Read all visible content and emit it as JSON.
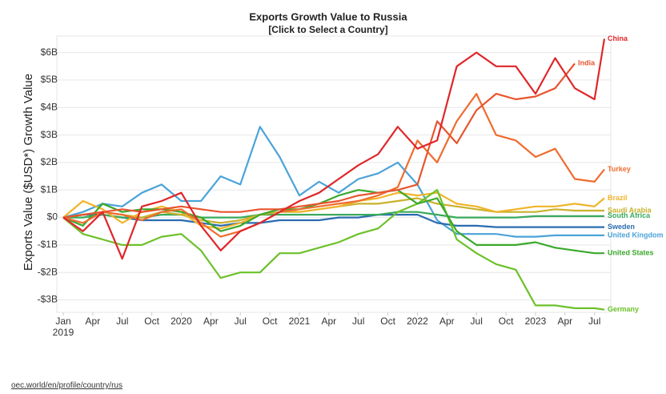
{
  "chart_data": {
    "type": "line",
    "title": "Exports Growth Value to Russia",
    "subtitle": "[Click to Select a Country]",
    "y_label": "Exports Value ($USD*) Growth Value",
    "source": "oec.world/en/profile/country/rus",
    "grid": true,
    "x": [
      "2019-01",
      "2019-03",
      "2019-05",
      "2019-07",
      "2019-09",
      "2019-11",
      "2020-01",
      "2020-03",
      "2020-05",
      "2020-07",
      "2020-09",
      "2020-11",
      "2021-01",
      "2021-03",
      "2021-05",
      "2021-07",
      "2021-09",
      "2021-11",
      "2022-01",
      "2022-03",
      "2022-05",
      "2022-07",
      "2022-09",
      "2022-11",
      "2023-01",
      "2023-03",
      "2023-05",
      "2023-07",
      "2023-08"
    ],
    "xlim": [
      "2019-01",
      "2023-08"
    ],
    "xticks": [
      {
        "value": "2019-01",
        "label": "Jan\n2019"
      },
      {
        "value": "2019-04",
        "label": "Apr"
      },
      {
        "value": "2019-07",
        "label": "Jul"
      },
      {
        "value": "2019-10",
        "label": "Oct"
      },
      {
        "value": "2020-01",
        "label": "2020"
      },
      {
        "value": "2020-04",
        "label": "Apr"
      },
      {
        "value": "2020-07",
        "label": "Jul"
      },
      {
        "value": "2020-10",
        "label": "Oct"
      },
      {
        "value": "2021-01",
        "label": "2021"
      },
      {
        "value": "2021-04",
        "label": "Apr"
      },
      {
        "value": "2021-07",
        "label": "Jul"
      },
      {
        "value": "2021-10",
        "label": "Oct"
      },
      {
        "value": "2022-01",
        "label": "2022"
      },
      {
        "value": "2022-04",
        "label": "Apr"
      },
      {
        "value": "2022-07",
        "label": "Jul"
      },
      {
        "value": "2022-10",
        "label": "Oct"
      },
      {
        "value": "2023-01",
        "label": "2023"
      },
      {
        "value": "2023-04",
        "label": "Apr"
      },
      {
        "value": "2023-07",
        "label": "Jul"
      }
    ],
    "ylim": [
      -3.45,
      6.6
    ],
    "yticks": [
      {
        "value": -3,
        "label": "-$3B"
      },
      {
        "value": -2,
        "label": "-$2B"
      },
      {
        "value": -1,
        "label": "-$1B"
      },
      {
        "value": 0,
        "label": "$0"
      },
      {
        "value": 1,
        "label": "$1B"
      },
      {
        "value": 2,
        "label": "$2B"
      },
      {
        "value": 3,
        "label": "$3B"
      },
      {
        "value": 4,
        "label": "$4B"
      },
      {
        "value": 5,
        "label": "$5B"
      },
      {
        "value": 6,
        "label": "$6B"
      }
    ],
    "series": [
      {
        "name": "United Kingdom",
        "color": "#4aa3d8",
        "values": [
          0,
          0.2,
          0.5,
          0.4,
          0.9,
          1.2,
          0.6,
          0.6,
          1.5,
          1.2,
          3.3,
          2.2,
          0.8,
          1.3,
          0.9,
          1.4,
          1.6,
          2.0,
          1.2,
          -0.1,
          -0.6,
          -0.6,
          -0.6,
          -0.7,
          -0.7,
          -0.65,
          -0.65,
          -0.65,
          -0.65
        ]
      },
      {
        "name": "Sweden",
        "color": "#2b6cb0",
        "values": [
          0,
          0.1,
          0.1,
          0.0,
          -0.1,
          -0.1,
          -0.1,
          -0.2,
          -0.3,
          -0.2,
          -0.2,
          -0.1,
          -0.1,
          -0.1,
          0.0,
          0.0,
          0.1,
          0.1,
          0.1,
          -0.2,
          -0.3,
          -0.3,
          -0.35,
          -0.35,
          -0.35,
          -0.35,
          -0.35,
          -0.35,
          -0.35
        ]
      },
      {
        "name": "South Africa",
        "color": "#3aaa5c",
        "values": [
          0,
          0.0,
          0.1,
          0.0,
          0.0,
          0.1,
          0.1,
          0.0,
          0.0,
          0.0,
          0.1,
          0.1,
          0.1,
          0.1,
          0.1,
          0.1,
          0.1,
          0.2,
          0.2,
          0.1,
          0.0,
          0.0,
          0.0,
          0.0,
          0.05,
          0.05,
          0.05,
          0.05,
          0.05
        ]
      },
      {
        "name": "Saudi Arabia",
        "color": "#c9b12d",
        "values": [
          0,
          0.1,
          0.2,
          0.1,
          0.0,
          0.2,
          0.1,
          -0.1,
          -0.2,
          -0.1,
          0.1,
          0.2,
          0.2,
          0.3,
          0.4,
          0.5,
          0.5,
          0.6,
          0.7,
          0.5,
          0.4,
          0.3,
          0.2,
          0.2,
          0.2,
          0.3,
          0.25,
          0.25,
          0.25
        ]
      },
      {
        "name": "Brazil",
        "color": "#f0b429",
        "values": [
          0,
          0.6,
          0.3,
          -0.2,
          0.2,
          0.4,
          0.2,
          -0.3,
          -0.4,
          -0.2,
          0.1,
          0.3,
          0.2,
          0.3,
          0.4,
          0.6,
          0.7,
          0.9,
          0.8,
          0.9,
          0.5,
          0.4,
          0.2,
          0.3,
          0.4,
          0.4,
          0.5,
          0.4,
          0.7
        ]
      },
      {
        "name": "Germany",
        "color": "#6cc12a",
        "values": [
          0,
          -0.6,
          -0.8,
          -1.0,
          -1.0,
          -0.7,
          -0.6,
          -1.2,
          -2.2,
          -2.0,
          -2.0,
          -1.3,
          -1.3,
          -1.1,
          -0.9,
          -0.6,
          -0.4,
          0.2,
          0.5,
          1.0,
          -0.8,
          -1.3,
          -1.7,
          -1.9,
          -3.2,
          -3.2,
          -3.3,
          -3.3,
          -3.35
        ]
      },
      {
        "name": "United States",
        "color": "#3aa82b",
        "values": [
          0,
          -0.3,
          0.5,
          0.2,
          0.3,
          0.3,
          0.2,
          0.0,
          -0.5,
          -0.3,
          0.1,
          0.3,
          0.3,
          0.5,
          0.8,
          1.0,
          0.9,
          1.0,
          0.5,
          0.7,
          -0.5,
          -1.0,
          -1.0,
          -1.0,
          -0.9,
          -1.1,
          -1.2,
          -1.3,
          -1.3
        ]
      },
      {
        "name": "Turkey",
        "color": "#ef6c2f",
        "values": [
          0,
          -0.2,
          0.2,
          0.1,
          -0.1,
          0.2,
          0.3,
          -0.2,
          -0.7,
          -0.5,
          -0.2,
          0.2,
          0.3,
          0.4,
          0.5,
          0.6,
          0.8,
          1.1,
          2.8,
          2.0,
          3.5,
          4.5,
          3.0,
          2.8,
          2.2,
          2.5,
          1.4,
          1.3,
          1.75
        ]
      },
      {
        "name": "India",
        "color": "#e8542f",
        "values": [
          0,
          0.1,
          0.2,
          0.3,
          0.2,
          0.3,
          0.4,
          0.3,
          0.2,
          0.2,
          0.3,
          0.3,
          0.4,
          0.5,
          0.6,
          0.8,
          0.9,
          1.0,
          1.2,
          3.5,
          2.7,
          3.9,
          4.5,
          4.3,
          4.4,
          4.7,
          5.6,
          null,
          null
        ]
      },
      {
        "name": "China",
        "color": "#e0262a",
        "values": [
          0,
          -0.5,
          0.2,
          -1.5,
          0.4,
          0.6,
          0.9,
          -0.3,
          -1.2,
          -0.5,
          -0.2,
          0.2,
          0.6,
          0.9,
          1.4,
          1.9,
          2.3,
          3.3,
          2.5,
          2.8,
          5.5,
          6.0,
          5.5,
          5.5,
          4.5,
          5.8,
          4.7,
          4.3,
          6.5
        ]
      }
    ]
  }
}
